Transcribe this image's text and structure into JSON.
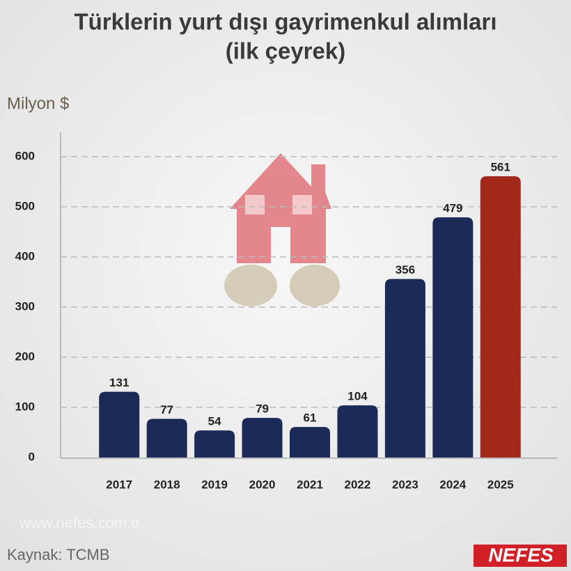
{
  "chart_data": {
    "type": "bar",
    "title": "Türklerin yurt dışı gayrimenkul alımları",
    "subtitle": "(ilk çeyrek)",
    "y_label": "Milyon $",
    "source": "Kaynak: TCMB",
    "watermark": "www.nefes.com.tr",
    "logo": "NEFES",
    "categories": [
      "2017",
      "2018",
      "2019",
      "2020",
      "2021",
      "2022",
      "2023",
      "2024",
      "2025"
    ],
    "values": [
      131,
      77,
      54,
      79,
      61,
      104,
      356,
      479,
      561
    ],
    "colors": [
      "#1b2a57",
      "#1b2a57",
      "#1b2a57",
      "#1b2a57",
      "#1b2a57",
      "#1b2a57",
      "#1b2a57",
      "#1b2a57",
      "#a3281a"
    ],
    "ylim": [
      0,
      650
    ],
    "yticks": [
      0,
      100,
      200,
      300,
      400,
      500,
      600
    ],
    "grid": true
  }
}
